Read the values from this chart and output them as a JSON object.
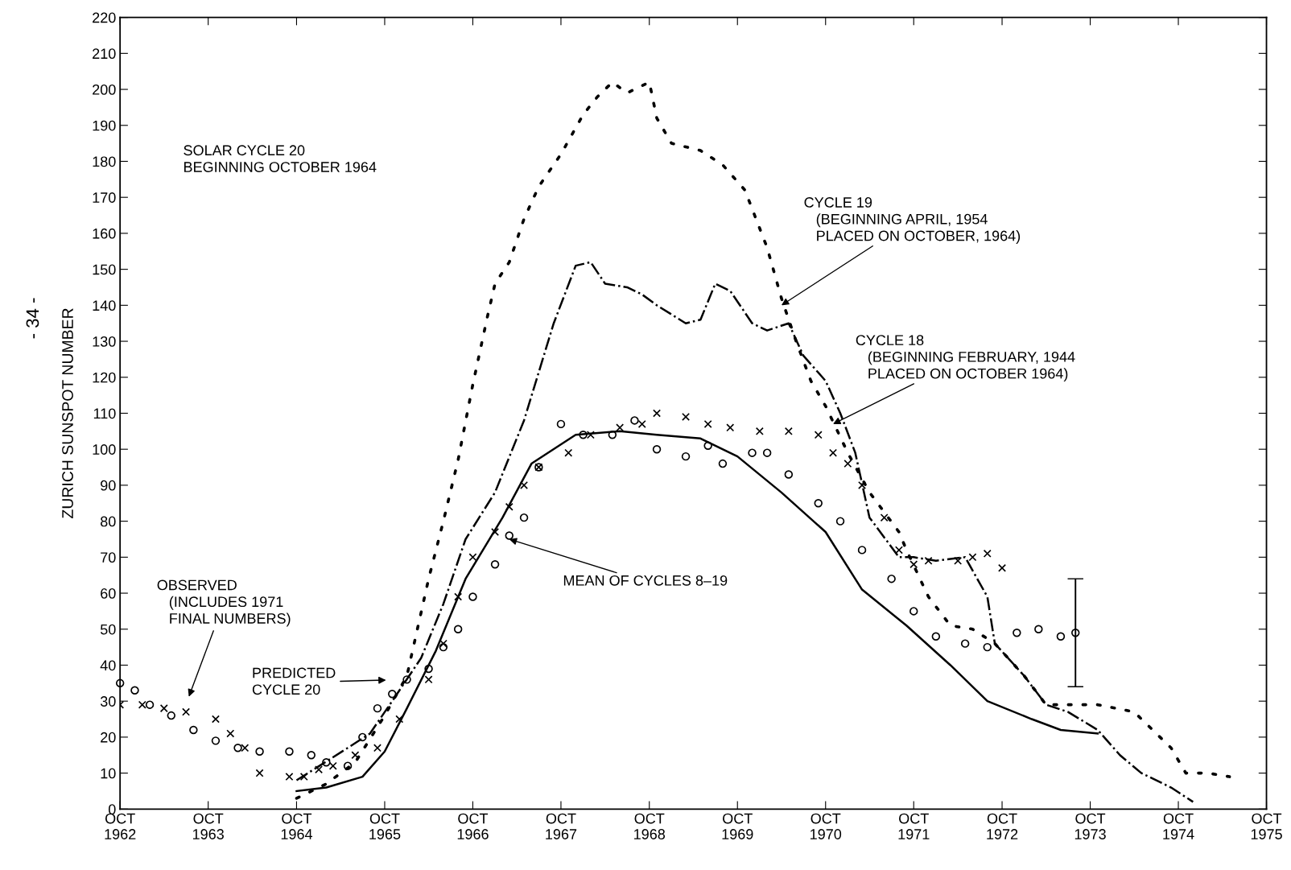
{
  "chart_data": {
    "type": "line",
    "ylabel": "ZURICH SUNSPOT NUMBER",
    "xlim": [
      "1962-10",
      "1975-10"
    ],
    "xticks": [
      {
        "value": "1962-10",
        "label": "OCT\n1962"
      },
      {
        "value": "1963-10",
        "label": "OCT\n1963"
      },
      {
        "value": "1964-10",
        "label": "OCT\n1964"
      },
      {
        "value": "1965-10",
        "label": "OCT\n1965"
      },
      {
        "value": "1966-10",
        "label": "OCT\n1966"
      },
      {
        "value": "1967-10",
        "label": "OCT\n1967"
      },
      {
        "value": "1968-10",
        "label": "OCT\n1968"
      },
      {
        "value": "1969-10",
        "label": "OCT\n1969"
      },
      {
        "value": "1970-10",
        "label": "OCT\n1970"
      },
      {
        "value": "1971-10",
        "label": "OCT\n1971"
      },
      {
        "value": "1972-10",
        "label": "OCT\n1972"
      },
      {
        "value": "1973-10",
        "label": "OCT\n1973"
      },
      {
        "value": "1974-10",
        "label": "OCT\n1974"
      },
      {
        "value": "1975-10",
        "label": "OCT\n1975"
      }
    ],
    "ylim": [
      0,
      220
    ],
    "yticks": [
      0,
      10,
      20,
      30,
      40,
      50,
      60,
      70,
      80,
      90,
      100,
      110,
      120,
      130,
      140,
      150,
      160,
      170,
      180,
      190,
      200,
      210,
      220
    ],
    "grid": false,
    "series": [
      {
        "type": "line",
        "line_style": "dotted",
        "color": "#000000",
        "x": [
          "1964-10",
          "1965-02",
          "1965-06",
          "1965-10",
          "1966-01",
          "1966-04",
          "1966-06",
          "1966-08",
          "1966-10",
          "1966-12",
          "1967-01",
          "1967-03",
          "1967-05",
          "1967-07",
          "1967-10",
          "1968-01",
          "1968-03",
          "1968-05",
          "1968-07",
          "1968-10",
          "1968-11",
          "1969-01",
          "1969-05",
          "1969-08",
          "1969-11",
          "1970-02",
          "1970-04",
          "1970-06",
          "1970-08",
          "1970-10",
          "1971-01",
          "1971-04",
          "1971-08",
          "1971-09",
          "1971-12",
          "1972-03",
          "1972-06",
          "1972-09",
          "1973-01",
          "1973-04",
          "1973-07",
          "1973-11",
          "1974-04",
          "1974-09",
          "1974-11",
          "1975-02",
          "1975-05"
        ],
        "values": [
          3,
          7,
          13,
          26,
          37,
          64,
          80,
          97,
          118,
          137,
          146,
          152,
          164,
          173,
          182,
          193,
          198,
          202,
          199,
          202,
          192,
          185,
          183,
          179,
          172,
          156,
          142,
          130,
          119,
          112,
          99,
          88,
          77,
          72,
          59,
          51,
          50,
          46,
          37,
          29,
          29,
          29,
          27,
          17,
          10,
          10,
          9
        ]
      },
      {
        "type": "line",
        "line_style": "dashdot",
        "color": "#000000",
        "x": [
          "1964-10",
          "1965-05",
          "1965-08",
          "1965-11",
          "1966-03",
          "1966-06",
          "1966-09",
          "1967-01",
          "1967-05",
          "1967-09",
          "1967-12",
          "1968-02",
          "1968-04",
          "1968-07",
          "1968-09",
          "1968-11",
          "1969-03",
          "1969-05",
          "1969-07",
          "1969-09",
          "1969-12",
          "1970-02",
          "1970-05",
          "1970-07",
          "1970-10",
          "1970-12",
          "1971-02",
          "1971-04",
          "1971-08",
          "1971-10",
          "1972-01",
          "1972-05",
          "1972-08",
          "1972-09",
          "1973-01",
          "1973-04",
          "1973-07",
          "1973-11",
          "1974-02",
          "1974-05",
          "1974-09",
          "1974-12"
        ],
        "values": [
          8,
          17,
          21,
          30,
          42,
          57,
          75,
          88,
          108,
          135,
          151,
          152,
          146,
          145,
          143,
          140,
          135,
          136,
          146,
          144,
          135,
          133,
          135,
          126,
          119,
          110,
          99,
          81,
          70,
          70,
          69,
          70,
          59,
          46,
          37,
          29,
          27,
          22,
          15,
          10,
          6,
          2
        ]
      },
      {
        "type": "line",
        "line_style": "solid",
        "color": "#000000",
        "x": [
          "1964-10",
          "1965-02",
          "1965-07",
          "1965-10",
          "1966-01",
          "1966-05",
          "1966-09",
          "1967-02",
          "1967-06",
          "1967-12",
          "1968-06",
          "1968-11",
          "1969-05",
          "1969-10",
          "1970-04",
          "1970-10",
          "1971-03",
          "1971-09",
          "1972-03",
          "1972-08",
          "1973-02",
          "1973-06",
          "1973-11"
        ],
        "values": [
          5,
          6,
          9,
          16,
          28,
          44,
          64,
          81,
          96,
          104,
          105,
          104,
          103,
          98,
          88,
          77,
          61,
          51,
          40,
          30,
          25,
          22,
          21
        ]
      },
      {
        "type": "scatter",
        "marker": "circle",
        "color": "#000000",
        "x": [
          "1962-10",
          "1962-12",
          "1963-02",
          "1963-05",
          "1963-08",
          "1963-11",
          "1964-02",
          "1964-05",
          "1964-09",
          "1964-12",
          "1965-02",
          "1965-05",
          "1965-07",
          "1965-09",
          "1965-11",
          "1966-01",
          "1966-04",
          "1966-06",
          "1966-08",
          "1966-10",
          "1967-01",
          "1967-03",
          "1967-05",
          "1967-07",
          "1967-10",
          "1968-01",
          "1968-05",
          "1968-08",
          "1968-11",
          "1969-03",
          "1969-06",
          "1969-08",
          "1969-12",
          "1970-02",
          "1970-05",
          "1970-09",
          "1970-12",
          "1971-03",
          "1971-07",
          "1971-10",
          "1972-01",
          "1972-05",
          "1972-08",
          "1972-12",
          "1973-03",
          "1973-06",
          "1973-08"
        ],
        "values": [
          35,
          33,
          29,
          26,
          22,
          19,
          17,
          16,
          16,
          15,
          13,
          12,
          20,
          28,
          32,
          36,
          39,
          45,
          50,
          59,
          68,
          76,
          81,
          95,
          107,
          104,
          104,
          108,
          100,
          98,
          101,
          96,
          99,
          99,
          93,
          85,
          80,
          72,
          64,
          55,
          48,
          46,
          45,
          49,
          50,
          48,
          49
        ],
        "errors": [
          null,
          null,
          null,
          null,
          null,
          null,
          null,
          null,
          null,
          null,
          null,
          null,
          null,
          null,
          null,
          null,
          null,
          null,
          null,
          null,
          null,
          null,
          null,
          null,
          null,
          null,
          null,
          null,
          null,
          null,
          null,
          null,
          null,
          null,
          null,
          null,
          null,
          null,
          null,
          null,
          null,
          null,
          null,
          null,
          null,
          null,
          15
        ]
      },
      {
        "type": "scatter",
        "marker": "cross",
        "color": "#000000",
        "x": [
          "1962-10",
          "1963-01",
          "1963-04",
          "1963-07",
          "1963-11",
          "1964-01",
          "1964-03",
          "1964-05",
          "1964-09",
          "1964-11",
          "1965-01",
          "1965-03",
          "1965-06",
          "1965-09",
          "1965-12",
          "1966-04",
          "1966-06",
          "1966-08",
          "1966-10",
          "1967-01",
          "1967-03",
          "1967-05",
          "1967-07",
          "1967-11",
          "1968-02",
          "1968-06",
          "1968-09",
          "1968-11",
          "1969-03",
          "1969-06",
          "1969-09",
          "1970-01",
          "1970-05",
          "1970-09",
          "1970-11",
          "1971-01",
          "1971-03",
          "1971-06",
          "1971-08",
          "1971-10",
          "1971-12",
          "1972-04",
          "1972-06",
          "1972-08",
          "1972-10"
        ],
        "values": [
          29,
          29,
          28,
          27,
          25,
          21,
          17,
          10,
          9,
          9,
          11,
          12,
          15,
          17,
          25,
          36,
          46,
          59,
          70,
          77,
          84,
          90,
          95,
          99,
          104,
          106,
          107,
          110,
          109,
          107,
          106,
          105,
          105,
          104,
          99,
          96,
          90,
          81,
          72,
          68,
          69,
          69,
          70,
          71,
          67
        ]
      }
    ],
    "annotations": [
      "SOLAR CYCLE 20\nBEGINNING OCTOBER 1964",
      {
        "text": "CYCLE 19\n   (BEGINNING APRIL, 1954\n   PLACED ON OCTOBER, 1964)",
        "x": "1970-04",
        "y": 140
      },
      {
        "text": "CYCLE 18\n   (BEGINNING FEBRUARY, 1944\n   PLACED ON OCTOBER 1964)",
        "x": "1970-11",
        "y": 107
      },
      {
        "text": "MEAN OF CYCLES 8–19",
        "x": "1967-03",
        "y": 75
      },
      "OBSERVED\n   (INCLUDES 1971\n   FINAL NUMBERS)",
      "PREDICTED\nCYCLE 20",
      "- 34 -"
    ]
  }
}
